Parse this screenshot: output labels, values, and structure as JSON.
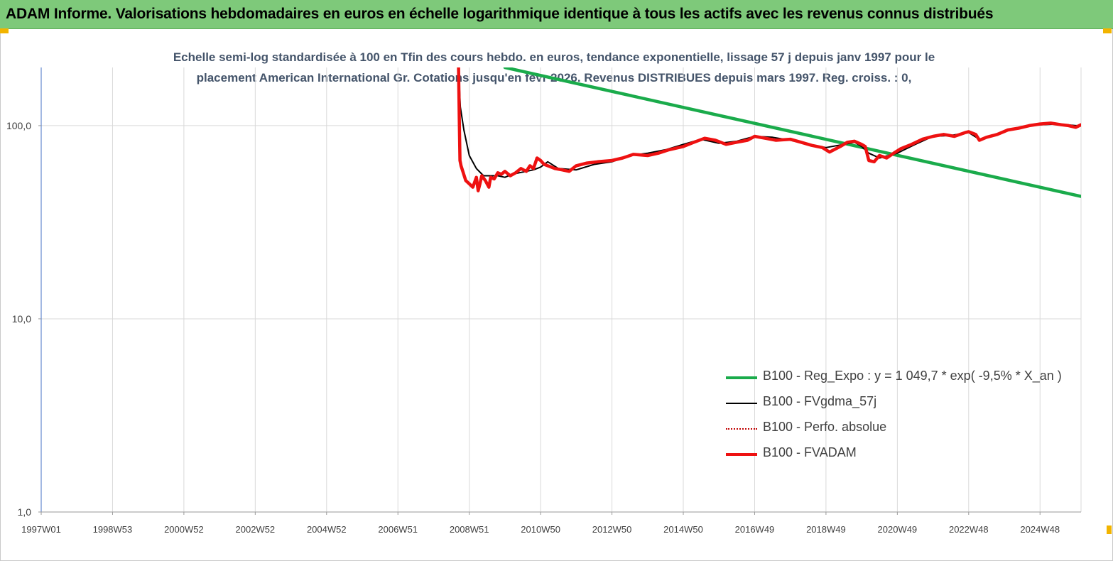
{
  "header": {
    "title": "ADAM Informe. Valorisations hebdomadaires en euros en échelle logarithmique identique à tous les actifs avec les revenus connus distribués"
  },
  "chart_data": {
    "type": "line",
    "subtitle_line1": "Echelle semi-log standardisée à 100 en Tfin des cours hebdo. en euros, tendance exponentielle, lissage 57 j depuis janv 1997 pour le",
    "subtitle_line2": "placement American International Gr. Cotations jusqu'en févr 2026. Revenus DISTRIBUES depuis mars 1997. Reg. croiss. : 0,",
    "y_scale": "log",
    "ylim": [
      1,
      200
    ],
    "xlim": [
      1997.0,
      2026.15
    ],
    "y_ticks": [
      {
        "value": 100,
        "label": "100,0"
      },
      {
        "value": 10,
        "label": "10,0"
      },
      {
        "value": 1,
        "label": "1,0"
      }
    ],
    "x_ticks": [
      {
        "value": 1997.0,
        "label": "1997W01"
      },
      {
        "value": 1999.0,
        "label": "1998W53"
      },
      {
        "value": 2001.0,
        "label": "2000W52"
      },
      {
        "value": 2003.0,
        "label": "2002W52"
      },
      {
        "value": 2005.0,
        "label": "2004W52"
      },
      {
        "value": 2007.0,
        "label": "2006W51"
      },
      {
        "value": 2009.0,
        "label": "2008W51"
      },
      {
        "value": 2011.0,
        "label": "2010W50"
      },
      {
        "value": 2013.0,
        "label": "2012W50"
      },
      {
        "value": 2015.0,
        "label": "2014W50"
      },
      {
        "value": 2017.0,
        "label": "2016W49"
      },
      {
        "value": 2019.0,
        "label": "2018W49"
      },
      {
        "value": 2021.0,
        "label": "2020W49"
      },
      {
        "value": 2023.0,
        "label": "2022W48"
      },
      {
        "value": 2025.0,
        "label": "2024W48"
      }
    ],
    "grid": "vertical",
    "legend_position": "bottom-right",
    "series": [
      {
        "name": "B100 - Reg_Expo : y = 1 049,7 * exp( -9,5% *  X_an )",
        "color": "#1aab4b",
        "style": "solid-thick",
        "x": [
          2010.0,
          2026.15
        ],
        "y": [
          200,
          43
        ]
      },
      {
        "name": "B100 - FVgdma_57j",
        "color": "#000000",
        "style": "solid-thin",
        "x": [
          2008.7,
          2008.75,
          2008.85,
          2009.0,
          2009.2,
          2009.4,
          2009.6,
          2009.8,
          2010.0,
          2010.2,
          2010.4,
          2010.6,
          2010.8,
          2011.0,
          2011.2,
          2011.5,
          2012.0,
          2012.5,
          2013.0,
          2013.5,
          2014.0,
          2014.5,
          2015.0,
          2015.5,
          2016.0,
          2016.5,
          2017.0,
          2017.5,
          2018.0,
          2018.5,
          2019.0,
          2019.5,
          2019.8,
          2020.0,
          2020.2,
          2020.5,
          2021.0,
          2021.5,
          2022.0,
          2022.5,
          2023.0,
          2023.3,
          2023.6,
          2024.0,
          2024.5,
          2025.0,
          2025.5,
          2026.0,
          2026.15
        ],
        "y": [
          200,
          125,
          95,
          70,
          60,
          55,
          55,
          55,
          54,
          56,
          57,
          58,
          59,
          61,
          65,
          60,
          59,
          63,
          65,
          70,
          72,
          75,
          80,
          85,
          81,
          83,
          88,
          87,
          84,
          80,
          77,
          80,
          82,
          78,
          72,
          68,
          72,
          80,
          88,
          89,
          92,
          85,
          88,
          94,
          99,
          101,
          102,
          100,
          100
        ]
      },
      {
        "name": "B100 - Perfo. absolue",
        "color": "#c00000",
        "style": "dotted",
        "x": [],
        "y": []
      },
      {
        "name": "B100 - FVADAM",
        "color": "#ee1111",
        "style": "solid-thick",
        "x": [
          2008.7,
          2008.72,
          2008.74,
          2008.77,
          2008.82,
          2008.9,
          2009.0,
          2009.1,
          2009.2,
          2009.25,
          2009.3,
          2009.35,
          2009.45,
          2009.55,
          2009.6,
          2009.7,
          2009.8,
          2009.9,
          2010.0,
          2010.15,
          2010.3,
          2010.45,
          2010.6,
          2010.7,
          2010.8,
          2010.9,
          2011.0,
          2011.1,
          2011.2,
          2011.4,
          2011.6,
          2011.8,
          2012.0,
          2012.3,
          2012.6,
          2013.0,
          2013.3,
          2013.6,
          2014.0,
          2014.3,
          2014.6,
          2015.0,
          2015.3,
          2015.6,
          2015.9,
          2016.2,
          2016.5,
          2016.8,
          2017.0,
          2017.3,
          2017.6,
          2018.0,
          2018.3,
          2018.6,
          2018.9,
          2019.1,
          2019.4,
          2019.6,
          2019.8,
          2020.0,
          2020.1,
          2020.2,
          2020.35,
          2020.5,
          2020.7,
          2020.9,
          2021.1,
          2021.4,
          2021.7,
          2022.0,
          2022.3,
          2022.6,
          2022.9,
          2023.0,
          2023.2,
          2023.3,
          2023.5,
          2023.8,
          2024.1,
          2024.4,
          2024.7,
          2025.0,
          2025.3,
          2025.6,
          2025.8,
          2026.0,
          2026.15
        ],
        "y": [
          200,
          110,
          66,
          62,
          58,
          52,
          50,
          48,
          54,
          46,
          50,
          55,
          52,
          48,
          54,
          53,
          57,
          56,
          58,
          55,
          57,
          60,
          58,
          62,
          60,
          68,
          66,
          63,
          62,
          60,
          59,
          58,
          62,
          64,
          65,
          66,
          68,
          71,
          70,
          72,
          75,
          78,
          82,
          86,
          84,
          80,
          82,
          84,
          88,
          86,
          84,
          85,
          82,
          79,
          77,
          73,
          78,
          82,
          83,
          80,
          78,
          66,
          65,
          70,
          68,
          72,
          76,
          80,
          85,
          88,
          90,
          88,
          92,
          93,
          90,
          84,
          87,
          90,
          95,
          97,
          100,
          102,
          103,
          101,
          100,
          98,
          101
        ]
      }
    ]
  }
}
